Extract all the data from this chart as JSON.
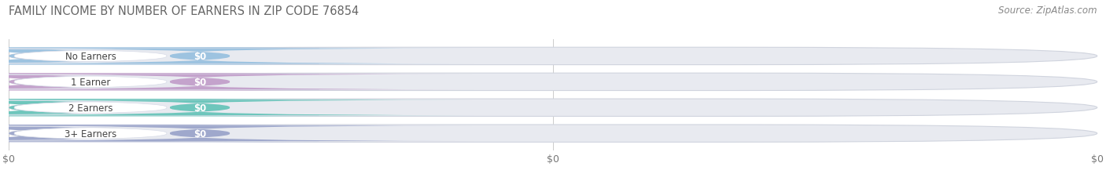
{
  "title": "FAMILY INCOME BY NUMBER OF EARNERS IN ZIP CODE 76854",
  "source": "Source: ZipAtlas.com",
  "categories": [
    "No Earners",
    "1 Earner",
    "2 Earners",
    "3+ Earners"
  ],
  "values": [
    0,
    0,
    0,
    0
  ],
  "bar_colors": [
    "#9dc3e0",
    "#c4a3cc",
    "#6ec6bc",
    "#9fa8cc"
  ],
  "bar_bg_color": "#e8eaf0",
  "value_labels": [
    "$0",
    "$0",
    "$0",
    "$0"
  ],
  "tick_labels": [
    "$0",
    "$0",
    "$0"
  ],
  "background_color": "#ffffff",
  "title_fontsize": 10.5,
  "source_fontsize": 8.5,
  "title_color": "#666666",
  "source_color": "#888888"
}
